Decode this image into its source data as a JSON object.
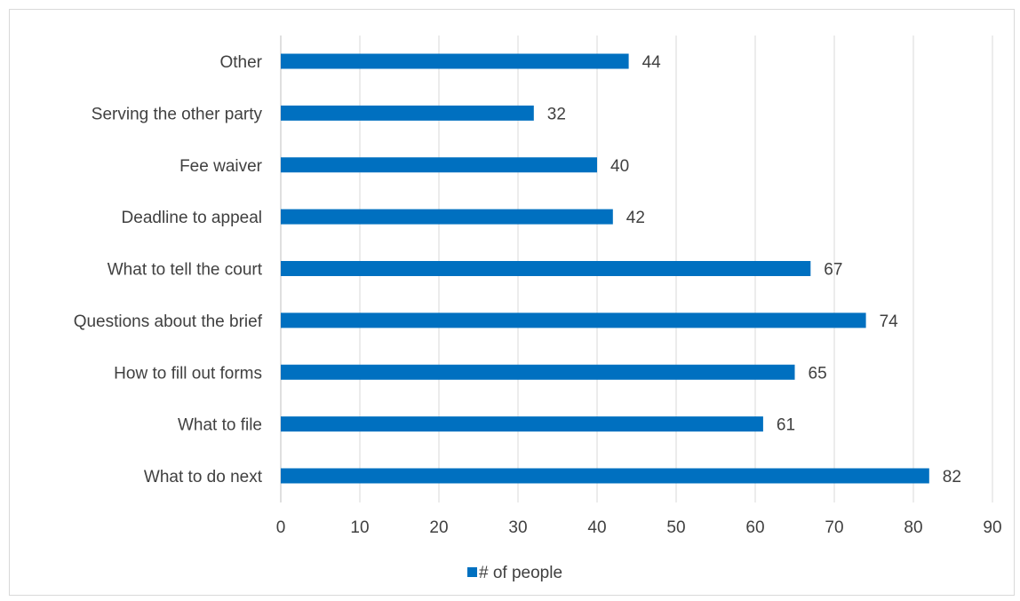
{
  "chart_data": {
    "type": "bar",
    "orientation": "horizontal",
    "categories": [
      "Other",
      "Serving the other party",
      "Fee waiver",
      "Deadline to appeal",
      "What to tell the court",
      "Questions about the brief",
      "How to fill out forms",
      "What to file",
      "What to do next"
    ],
    "series": [
      {
        "name": "# of people",
        "values": [
          44,
          32,
          40,
          42,
          67,
          74,
          65,
          61,
          82
        ],
        "color": "#0070c0"
      }
    ],
    "xlim": [
      0,
      90
    ],
    "xticks": [
      0,
      10,
      20,
      30,
      40,
      50,
      60,
      70,
      80,
      90
    ],
    "grid": "vertical",
    "legend_position": "bottom",
    "data_labels": true
  }
}
